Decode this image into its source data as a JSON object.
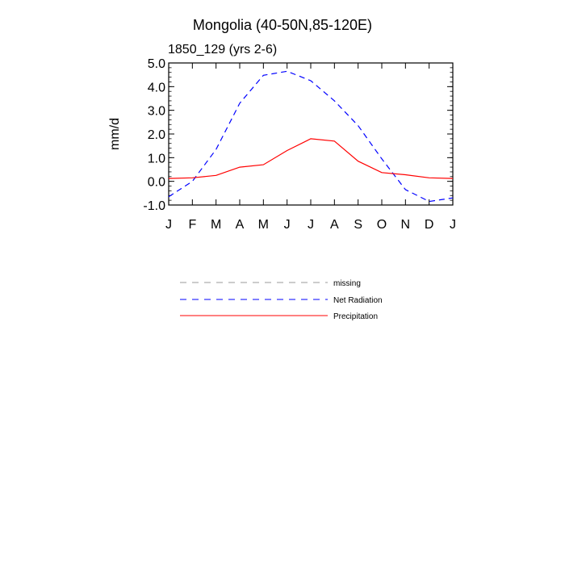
{
  "chart_data": {
    "type": "line",
    "title": "Mongolia (40-50N,85-120E)",
    "subtitle": "1850_129 (yrs 2-6)",
    "xlabel": "",
    "ylabel": "mm/d",
    "categories": [
      "J",
      "F",
      "M",
      "A",
      "M",
      "J",
      "J",
      "A",
      "S",
      "O",
      "N",
      "D",
      "J"
    ],
    "ylim": [
      -1.0,
      5.0
    ],
    "yticks": [
      "5.0",
      "4.0",
      "3.0",
      "2.0",
      "1.0",
      "0.0",
      "-1.0"
    ],
    "grid": false,
    "legend_position": "below",
    "series": [
      {
        "name": "Net Radiation",
        "color": "#0000ff",
        "dash": "dashed",
        "values": [
          -0.65,
          0.0,
          1.35,
          3.3,
          4.48,
          4.65,
          4.25,
          3.4,
          2.35,
          0.95,
          -0.35,
          -0.85,
          -0.7
        ]
      },
      {
        "name": "Precipitation",
        "color": "#ff0000",
        "dash": "solid",
        "values": [
          0.12,
          0.15,
          0.25,
          0.6,
          0.7,
          1.3,
          1.8,
          1.7,
          0.85,
          0.37,
          0.28,
          0.15,
          0.12
        ]
      }
    ],
    "legend": [
      {
        "label": "missing",
        "color": "#999999",
        "dash": "dashed"
      },
      {
        "label": "Net Radiation",
        "color": "#0000ff",
        "dash": "dashed"
      },
      {
        "label": "Precipitation",
        "color": "#ff0000",
        "dash": "solid"
      }
    ]
  }
}
